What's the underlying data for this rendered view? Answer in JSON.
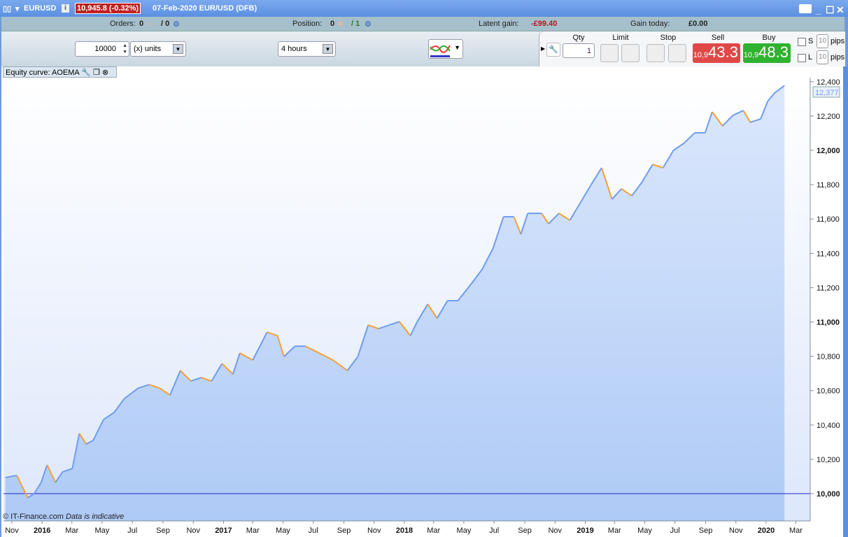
{
  "titlebar": {
    "symbol": "EURUSD",
    "price_change": "10,945.8 (-0.32%)",
    "description": "07-Feb-2020 EUR/USD (DFB)",
    "icons": [
      "candlestick-icon",
      "info-icon",
      "keyboard-icon",
      "minimize-icon",
      "maximize-icon",
      "close-icon"
    ]
  },
  "infobar": {
    "orders_label": "Orders:",
    "orders_value": "0",
    "orders_total": "/ 0",
    "position_label": "Position:",
    "position_value": "0",
    "position_total": "/ 1",
    "latent_label": "Latent gain:",
    "latent_value": "-£99.40",
    "gain_today_label": "Gain today:",
    "gain_today_value": "£0.00",
    "latent_color": "#c0101a"
  },
  "toolbar": {
    "quantity": "10000",
    "units": "(x) units",
    "timeframe": "4 hours"
  },
  "trade": {
    "qty_label": "Qty",
    "qty_value": "1",
    "limit_label": "Limit",
    "stop_label": "Stop",
    "sell_label": "Sell",
    "buy_label": "Buy",
    "sell_prefix": "10,9",
    "sell_big": "43.3",
    "buy_prefix": "10,9",
    "buy_big": "48.3",
    "sell_color": "#e04848",
    "buy_color": "#2fb22f",
    "s_label": "S",
    "l_label": "L",
    "s_pips": "10",
    "l_pips": "10",
    "pips_label": "pips"
  },
  "panel": {
    "tab_title": "Equity curve: AOEMA",
    "footer_copyright": "© IT-Finance.com",
    "footer_note": "Data is indicative"
  },
  "chart_data": {
    "type": "area",
    "title": "Equity curve: AOEMA",
    "last_value_label": "12,377",
    "baseline": 10000,
    "ylim": [
      9840,
      12450
    ],
    "y_ticks": [
      "10,000",
      "10,200",
      "10,400",
      "10,600",
      "10,800",
      "11,000",
      "11,200",
      "11,400",
      "11,600",
      "11,800",
      "12,000",
      "12,200",
      "12,400"
    ],
    "x_ticks": [
      "Nov",
      "2016",
      "Mar",
      "May",
      "Jul",
      "Sep",
      "Nov",
      "2017",
      "Mar",
      "May",
      "Jul",
      "Sep",
      "Nov",
      "2018",
      "Mar",
      "May",
      "Jul",
      "Sep",
      "Nov",
      "2019",
      "Mar",
      "May",
      "Jul",
      "Sep",
      "Nov",
      "2020",
      "Mar"
    ],
    "line_color": "#6f9cef",
    "down_color": "#f5a030",
    "fill_color": "#c3d7f8",
    "x": [
      "2015-10-19",
      "2015-11-11",
      "2015-12-03",
      "2015-12-16",
      "2015-12-30",
      "2016-01-11",
      "2016-01-28",
      "2016-02-11",
      "2016-03-02",
      "2016-03-16",
      "2016-03-30",
      "2016-04-13",
      "2016-05-04",
      "2016-05-25",
      "2016-06-15",
      "2016-07-13",
      "2016-08-04",
      "2016-08-25",
      "2016-09-15",
      "2016-10-06",
      "2016-10-27",
      "2016-11-17",
      "2016-12-08",
      "2016-12-29",
      "2017-01-20",
      "2017-02-03",
      "2017-03-01",
      "2017-03-30",
      "2017-04-20",
      "2017-05-03",
      "2017-05-25",
      "2017-06-15",
      "2017-07-13",
      "2017-08-10",
      "2017-09-08",
      "2017-09-29",
      "2017-10-20",
      "2017-11-10",
      "2017-12-01",
      "2017-12-22",
      "2018-01-13",
      "2018-01-27",
      "2018-02-17",
      "2018-03-08",
      "2018-03-29",
      "2018-04-19",
      "2018-05-17",
      "2018-06-07",
      "2018-06-29",
      "2018-07-20",
      "2018-08-10",
      "2018-08-24",
      "2018-09-07",
      "2018-10-05",
      "2018-10-19",
      "2018-11-09",
      "2018-12-01",
      "2018-12-22",
      "2019-01-12",
      "2019-02-03",
      "2019-02-24",
      "2019-03-15",
      "2019-04-05",
      "2019-04-26",
      "2019-05-17",
      "2019-06-07",
      "2019-06-28",
      "2019-07-19",
      "2019-08-10",
      "2019-08-31",
      "2019-09-14",
      "2019-10-05",
      "2019-10-26",
      "2019-11-16",
      "2019-11-30",
      "2019-12-21",
      "2020-01-04",
      "2020-01-18",
      "2020-02-07"
    ],
    "y": [
      10094,
      10106,
      9976,
      10000,
      10065,
      10167,
      10065,
      10126,
      10147,
      10350,
      10289,
      10310,
      10432,
      10472,
      10554,
      10615,
      10635,
      10615,
      10574,
      10717,
      10656,
      10676,
      10656,
      10758,
      10696,
      10819,
      10778,
      10941,
      10920,
      10798,
      10859,
      10859,
      10819,
      10778,
      10717,
      10798,
      10982,
      10961,
      10982,
      11002,
      10920,
      11002,
      11104,
      11022,
      11124,
      11124,
      11226,
      11307,
      11430,
      11613,
      11613,
      11511,
      11633,
      11633,
      11572,
      11633,
      11593,
      11694,
      11796,
      11898,
      11715,
      11776,
      11735,
      11817,
      11918,
      11898,
      12000,
      12041,
      12102,
      12102,
      12224,
      12142,
      12204,
      12232,
      12163,
      12183,
      12285,
      12334,
      12377
    ]
  }
}
